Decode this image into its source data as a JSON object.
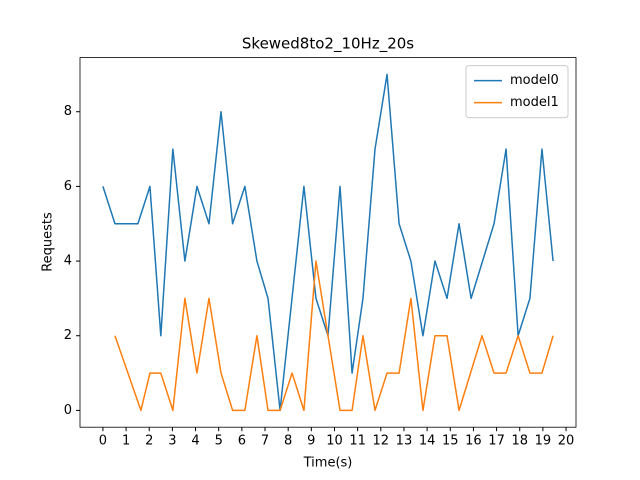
{
  "chart_data": {
    "type": "line",
    "title": "Skewed8to2_10Hz_20s",
    "xlabel": "Time(s)",
    "ylabel": "Requests",
    "series": [
      {
        "name": "model0",
        "color": "#1f77b4",
        "x": [
          0,
          0.52,
          1.51,
          2.03,
          2.5,
          3.02,
          3.54,
          4.06,
          4.58,
          5.1,
          5.6,
          6.13,
          6.65,
          7.13,
          7.65,
          8.68,
          9.2,
          9.72,
          10.24,
          10.76,
          11.23,
          11.75,
          12.27,
          12.79,
          13.3,
          13.82,
          14.34,
          14.86,
          15.38,
          15.9,
          16.89,
          17.41,
          17.93,
          18.44,
          18.96,
          19.44
        ],
        "values": [
          6,
          5,
          5,
          6,
          2,
          7,
          4,
          6,
          5,
          8,
          5,
          6,
          4,
          3,
          0,
          6,
          3,
          2,
          6,
          1,
          3,
          7,
          9,
          5,
          4,
          2,
          4,
          3,
          5,
          3,
          5,
          7,
          2,
          3,
          7,
          4
        ]
      },
      {
        "name": "model1",
        "color": "#ff7f0e",
        "x": [
          0.52,
          1.64,
          2.03,
          2.5,
          3.02,
          3.54,
          4.06,
          4.58,
          5.1,
          5.6,
          6.13,
          6.65,
          7.13,
          7.65,
          8.17,
          8.68,
          9.2,
          10.24,
          10.76,
          11.23,
          11.75,
          12.27,
          12.79,
          13.3,
          13.82,
          14.34,
          14.86,
          15.38,
          16.37,
          16.89,
          17.41,
          17.93,
          18.44,
          18.96,
          19.44
        ],
        "values": [
          2,
          0,
          1,
          1,
          0,
          3,
          1,
          3,
          1,
          0,
          0,
          2,
          0,
          0,
          1,
          0,
          4,
          0,
          0,
          2,
          0,
          1,
          1,
          3,
          0,
          2,
          2,
          0,
          2,
          1,
          1,
          2,
          1,
          1,
          2
        ]
      }
    ],
    "xlim": [
      -0.99,
      20.43
    ],
    "xticks": [
      0,
      1,
      2,
      3,
      4,
      5,
      6,
      7,
      8,
      9,
      10,
      11,
      12,
      13,
      14,
      15,
      16,
      17,
      18,
      19,
      20
    ],
    "ylim": [
      -0.45,
      9.45
    ],
    "yticks": [
      0,
      2,
      4,
      6,
      8
    ],
    "legend": "upper right"
  }
}
